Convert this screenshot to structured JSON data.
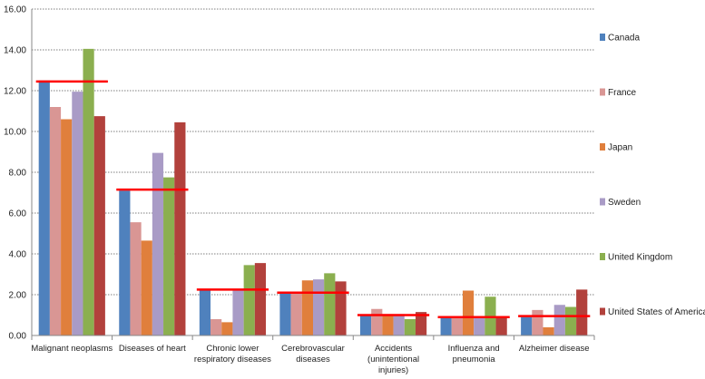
{
  "chart_data": {
    "type": "bar",
    "title": "",
    "xlabel": "",
    "ylabel": "",
    "ylim": [
      0,
      16
    ],
    "yticks": [
      "0.00",
      "2.00",
      "4.00",
      "6.00",
      "8.00",
      "10.00",
      "12.00",
      "14.00",
      "16.00"
    ],
    "categories": [
      [
        "Malignant neoplasms"
      ],
      [
        "Diseases of heart"
      ],
      [
        "Chronic lower",
        "respiratory diseases"
      ],
      [
        "Cerebrovascular",
        "diseases"
      ],
      [
        "Accidents",
        "(unintentional",
        "injuries)"
      ],
      [
        "Influenza and",
        "pneumonia"
      ],
      [
        "Alzheimer disease"
      ]
    ],
    "series": [
      {
        "name": "Canada",
        "color": "#4F81BD",
        "values": [
          12.5,
          7.1,
          2.2,
          2.05,
          1.0,
          0.85,
          0.9
        ]
      },
      {
        "name": "France",
        "color": "#D99694",
        "values": [
          11.2,
          5.55,
          0.8,
          2.1,
          1.3,
          0.85,
          1.25
        ]
      },
      {
        "name": "Japan",
        "color": "#E07F3C",
        "values": [
          10.6,
          4.65,
          0.65,
          2.7,
          1.05,
          2.2,
          0.4
        ]
      },
      {
        "name": "Sweden",
        "color": "#A99BC6",
        "values": [
          11.95,
          8.95,
          2.2,
          2.75,
          1.05,
          0.85,
          1.5
        ]
      },
      {
        "name": "United Kingdom",
        "color": "#8BAF4F",
        "values": [
          14.05,
          7.75,
          3.45,
          3.05,
          0.8,
          1.9,
          1.4
        ]
      },
      {
        "name": "United States of America",
        "color": "#B2413C",
        "values": [
          10.75,
          10.45,
          3.55,
          2.65,
          1.15,
          0.9,
          2.25
        ]
      }
    ],
    "average_lines": {
      "color": "#FF0000",
      "values": [
        12.45,
        7.15,
        2.25,
        2.1,
        1.0,
        0.9,
        0.95
      ]
    },
    "grid": true,
    "legend": "right"
  }
}
